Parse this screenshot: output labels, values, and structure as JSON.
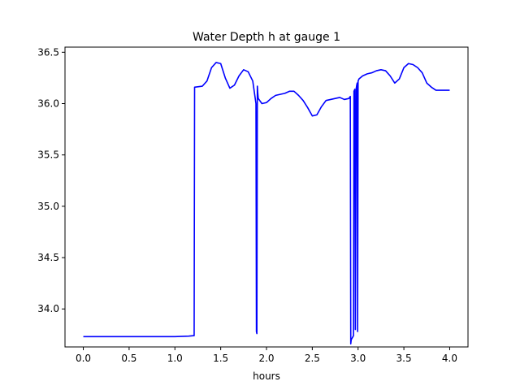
{
  "chart_data": {
    "type": "line",
    "title": "Water Depth h at gauge 1",
    "xlabel": "hours",
    "ylabel": "",
    "xlim": [
      -0.2,
      4.2
    ],
    "ylim": [
      33.63,
      36.55
    ],
    "grid": false,
    "x_ticks": [
      0.0,
      0.5,
      1.0,
      1.5,
      2.0,
      2.5,
      3.0,
      3.5,
      4.0
    ],
    "x_tick_labels": [
      "0.0",
      "0.5",
      "1.0",
      "1.5",
      "2.0",
      "2.5",
      "3.0",
      "3.5",
      "4.0"
    ],
    "y_ticks": [
      34.0,
      34.5,
      35.0,
      35.5,
      36.0,
      36.5
    ],
    "y_tick_labels": [
      "34.0",
      "34.5",
      "35.0",
      "35.5",
      "36.0",
      "36.5"
    ],
    "series": [
      {
        "color": "#0000ff",
        "x": [
          0.0,
          0.5,
          1.0,
          1.15,
          1.21,
          1.215,
          1.3,
          1.35,
          1.4,
          1.45,
          1.5,
          1.55,
          1.6,
          1.65,
          1.7,
          1.75,
          1.8,
          1.85,
          1.885,
          1.89,
          1.895,
          1.9,
          1.905,
          1.91,
          1.95,
          2.0,
          2.05,
          2.1,
          2.15,
          2.2,
          2.25,
          2.3,
          2.35,
          2.4,
          2.45,
          2.5,
          2.55,
          2.6,
          2.65,
          2.7,
          2.75,
          2.8,
          2.85,
          2.9,
          2.915,
          2.92,
          2.925,
          2.95,
          2.955,
          2.965,
          2.97,
          2.98,
          2.985,
          2.99,
          2.995,
          3.0,
          3.01,
          3.05,
          3.1,
          3.15,
          3.2,
          3.25,
          3.3,
          3.35,
          3.4,
          3.45,
          3.5,
          3.55,
          3.6,
          3.65,
          3.7,
          3.75,
          3.8,
          3.85,
          3.9,
          3.95,
          4.0
        ],
        "y": [
          33.73,
          33.73,
          33.73,
          33.735,
          33.74,
          36.16,
          36.17,
          36.22,
          36.35,
          36.4,
          36.39,
          36.25,
          36.15,
          36.18,
          36.27,
          36.33,
          36.31,
          36.22,
          36.0,
          33.78,
          33.76,
          36.17,
          36.1,
          36.05,
          36.0,
          36.01,
          36.05,
          36.08,
          36.09,
          36.1,
          36.12,
          36.12,
          36.08,
          36.03,
          35.96,
          35.88,
          35.89,
          35.97,
          36.03,
          36.04,
          36.05,
          36.06,
          36.04,
          36.05,
          36.07,
          33.66,
          33.7,
          33.74,
          36.12,
          36.14,
          33.8,
          36.15,
          36.18,
          36.2,
          33.78,
          36.22,
          36.24,
          36.27,
          36.29,
          36.3,
          36.32,
          36.33,
          36.32,
          36.27,
          36.2,
          36.24,
          36.35,
          36.39,
          36.38,
          36.35,
          36.3,
          36.2,
          36.16,
          36.13,
          36.13,
          36.13,
          36.13
        ]
      }
    ]
  }
}
